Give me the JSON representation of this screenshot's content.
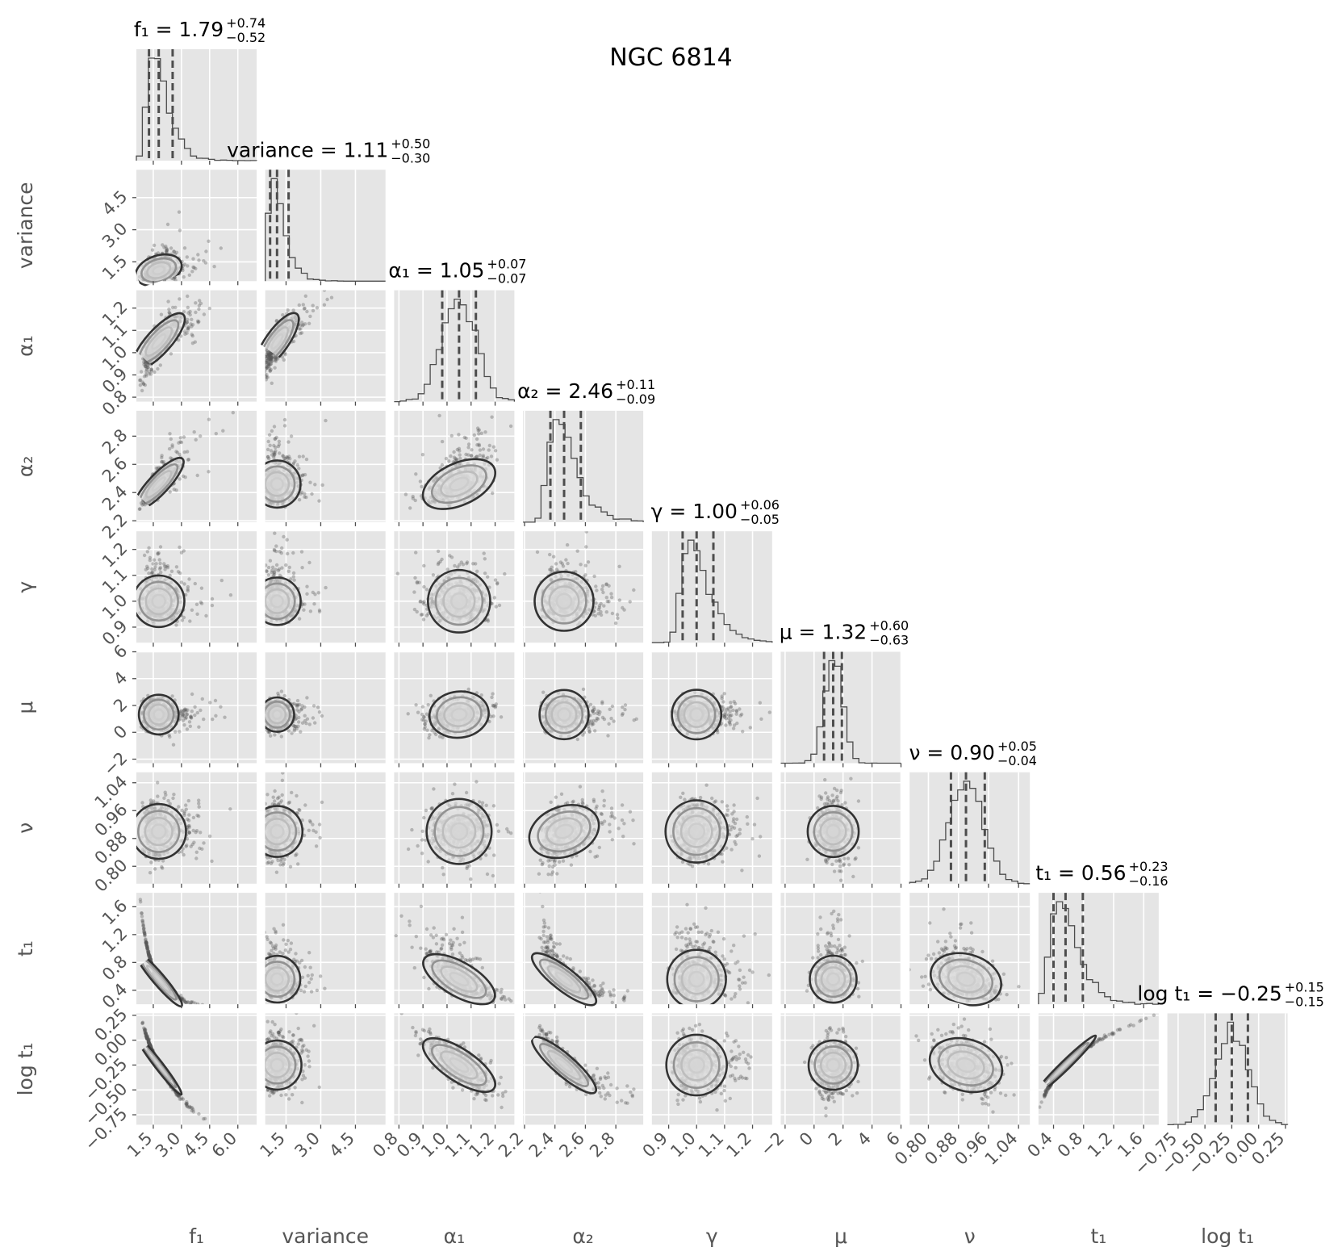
{
  "chart_data": {
    "type": "corner",
    "title": "NGC 6814",
    "params": [
      {
        "key": "f1",
        "label": "f₁",
        "median": "1.79",
        "plus": "+0.74",
        "minus": "−0.52",
        "range": [
          0.6,
          7.0
        ],
        "ticks": [
          1.5,
          3.0,
          4.5,
          6.0
        ],
        "tick_labels": [
          "1.5",
          "3.0",
          "4.5",
          "6.0"
        ],
        "center": 1.79,
        "sigma": 0.6,
        "skew": "right"
      },
      {
        "key": "variance",
        "label": "variance",
        "median": "1.11",
        "plus": "+0.50",
        "minus": "−0.30",
        "range": [
          0.6,
          5.8
        ],
        "ticks": [
          1.5,
          3.0,
          4.5
        ],
        "tick_labels": [
          "1.5",
          "3.0",
          "4.5"
        ],
        "center": 1.11,
        "sigma": 0.38,
        "skew": "right"
      },
      {
        "key": "a1",
        "label": "α₁",
        "median": "1.05",
        "plus": "+0.07",
        "minus": "−0.07",
        "range": [
          0.78,
          1.28
        ],
        "ticks": [
          0.8,
          0.9,
          1.0,
          1.1,
          1.2
        ],
        "tick_labels": [
          "0.8",
          "0.9",
          "1.0",
          "1.1",
          "1.2"
        ],
        "center": 1.05,
        "sigma": 0.07,
        "skew": "none"
      },
      {
        "key": "a2",
        "label": "α₂",
        "median": "2.46",
        "plus": "+0.11",
        "minus": "−0.09",
        "range": [
          2.19,
          2.98
        ],
        "ticks": [
          2.2,
          2.4,
          2.6,
          2.8
        ],
        "tick_labels": [
          "2.2",
          "2.4",
          "2.6",
          "2.8"
        ],
        "center": 2.46,
        "sigma": 0.1,
        "skew": "right"
      },
      {
        "key": "g",
        "label": "γ",
        "median": "1.00",
        "plus": "+0.06",
        "minus": "−0.05",
        "range": [
          0.84,
          1.27
        ],
        "ticks": [
          0.9,
          1.0,
          1.1,
          1.2
        ],
        "tick_labels": [
          "0.9",
          "1.0",
          "1.1",
          "1.2"
        ],
        "center": 1.0,
        "sigma": 0.055,
        "skew": "right"
      },
      {
        "key": "mu",
        "label": "μ",
        "median": "1.32",
        "plus": "+0.60",
        "minus": "−0.63",
        "range": [
          -2.3,
          6.0
        ],
        "ticks": [
          -2,
          0,
          2,
          4,
          6
        ],
        "tick_labels": [
          "−2",
          "0",
          "2",
          "4",
          "6"
        ],
        "center": 1.32,
        "sigma": 0.62,
        "skew": "none"
      },
      {
        "key": "nu",
        "label": "ν",
        "median": "0.90",
        "plus": "+0.05",
        "minus": "−0.04",
        "range": [
          0.75,
          1.07
        ],
        "ticks": [
          0.8,
          0.88,
          0.96,
          1.04
        ],
        "tick_labels": [
          "0.80",
          "0.88",
          "0.96",
          "1.04"
        ],
        "center": 0.9,
        "sigma": 0.045,
        "skew": "none"
      },
      {
        "key": "t1",
        "label": "t₁",
        "median": "0.56",
        "plus": "+0.23",
        "minus": "−0.16",
        "range": [
          0.2,
          1.8
        ],
        "ticks": [
          0.4,
          0.8,
          1.2,
          1.6
        ],
        "tick_labels": [
          "0.4",
          "0.8",
          "1.2",
          "1.6"
        ],
        "center": 0.56,
        "sigma": 0.2,
        "skew": "right"
      },
      {
        "key": "lt1",
        "label": "log t₁",
        "median": "−0.25",
        "plus": "+0.15",
        "minus": "−0.15",
        "range": [
          -0.85,
          0.27
        ],
        "ticks": [
          -0.75,
          -0.5,
          -0.25,
          0.0,
          0.25
        ],
        "tick_labels": [
          "−0.75",
          "−0.50",
          "−0.25",
          "0.00",
          "0.25"
        ],
        "center": -0.25,
        "sigma": 0.15,
        "skew": "none"
      }
    ],
    "quantile_lines": [
      0.16,
      0.5,
      0.84
    ],
    "correlations": [
      {
        "pair": [
          "variance",
          "f1"
        ],
        "r": 0.45
      },
      {
        "pair": [
          "a1",
          "f1"
        ],
        "r": 0.8
      },
      {
        "pair": [
          "a1",
          "variance"
        ],
        "r": 0.8
      },
      {
        "pair": [
          "a2",
          "f1"
        ],
        "r": 0.85
      },
      {
        "pair": [
          "a2",
          "a1"
        ],
        "r": 0.55
      },
      {
        "pair": [
          "mu",
          "a1"
        ],
        "r": 0.25
      },
      {
        "pair": [
          "nu",
          "a2"
        ],
        "r": 0.35
      },
      {
        "pair": [
          "t1",
          "f1"
        ],
        "r": -0.95
      },
      {
        "pair": [
          "t1",
          "a1"
        ],
        "r": -0.7
      },
      {
        "pair": [
          "t1",
          "a2"
        ],
        "r": -0.85
      },
      {
        "pair": [
          "t1",
          "nu"
        ],
        "r": -0.35
      },
      {
        "pair": [
          "lt1",
          "f1"
        ],
        "r": -0.98
      },
      {
        "pair": [
          "lt1",
          "a1"
        ],
        "r": -0.75
      },
      {
        "pair": [
          "lt1",
          "a2"
        ],
        "r": -0.88
      },
      {
        "pair": [
          "lt1",
          "nu"
        ],
        "r": -0.35
      },
      {
        "pair": [
          "lt1",
          "t1"
        ],
        "r": 0.98
      }
    ],
    "grid": true,
    "panel_background": "#e5e5e5",
    "colors": {
      "ink": "#4d4d4d",
      "points": "#555555",
      "contour": "#333333",
      "title_text": "#000000",
      "tick_text": "#555555"
    }
  }
}
